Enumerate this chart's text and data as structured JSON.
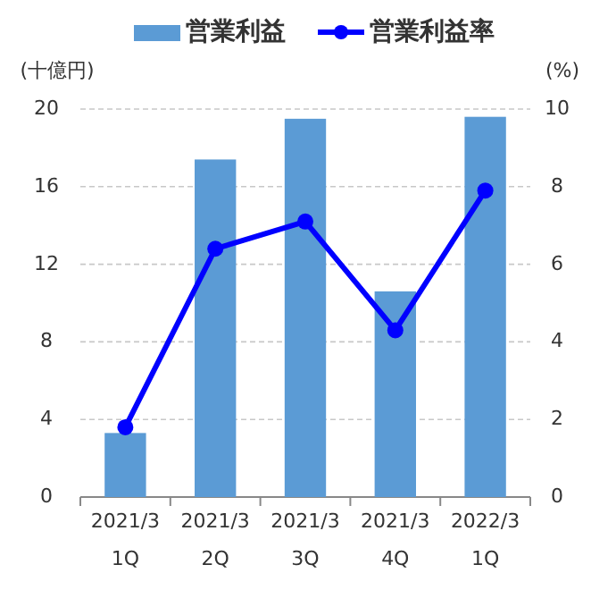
{
  "chart_data": {
    "type": "bar",
    "ylabel": "(十億円)",
    "y2label": "(%)",
    "categories": [
      "2021/3\n1Q",
      "2021/3\n2Q",
      "2021/3\n3Q",
      "2021/3\n4Q",
      "2022/3\n1Q"
    ],
    "series": [
      {
        "name": "営業利益",
        "color": "#5b9bd5",
        "values": [
          3.3,
          17.4,
          19.5,
          10.6,
          19.6
        ]
      },
      {
        "name": "営業利益率",
        "type": "line",
        "axis": "y2",
        "color": "#0000ff",
        "marker": "circle",
        "values": [
          1.8,
          6.4,
          7.1,
          4.3,
          7.9
        ]
      }
    ],
    "ylim": [
      0,
      20
    ],
    "yticks": [
      0,
      4,
      8,
      12,
      16,
      20
    ],
    "y2lim": [
      0,
      10
    ],
    "y2ticks": [
      0,
      2,
      4,
      6,
      8,
      10
    ],
    "grid": "y",
    "legend": "top"
  }
}
